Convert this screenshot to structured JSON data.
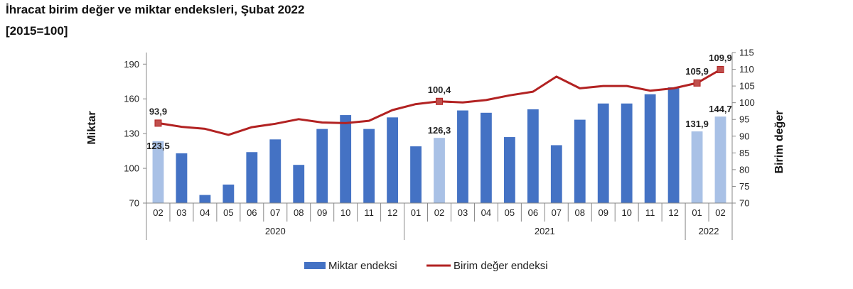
{
  "header": {
    "title": "İhracat birim değer ve miktar endeksleri, Şubat 2022",
    "subtitle": "[2015=100]"
  },
  "chart_data": {
    "type": "bar",
    "categories": [
      "02",
      "03",
      "04",
      "05",
      "06",
      "07",
      "08",
      "09",
      "10",
      "11",
      "12",
      "01",
      "02",
      "03",
      "04",
      "05",
      "06",
      "07",
      "08",
      "09",
      "10",
      "11",
      "12",
      "01",
      "02"
    ],
    "year_groups": [
      {
        "label": "2020",
        "start": 0,
        "end": 10
      },
      {
        "label": "2021",
        "start": 11,
        "end": 22
      },
      {
        "label": "2022",
        "start": 23,
        "end": 24
      }
    ],
    "ylabel_left": "Miktar",
    "ylabel_right": "Birim değer",
    "ylim_left": [
      70,
      200
    ],
    "yticks_left": [
      70,
      100,
      130,
      160,
      190
    ],
    "ylim_right": [
      70,
      115
    ],
    "yticks_right": [
      70,
      75,
      80,
      85,
      90,
      95,
      100,
      105,
      110,
      115
    ],
    "series": [
      {
        "name": "Miktar endeksi",
        "type": "bar",
        "axis": "left",
        "color": "#4472c4",
        "highlight_color": "#a9c1e6",
        "highlight_indices": [
          0,
          12,
          23,
          24
        ],
        "values": [
          123.5,
          113,
          77,
          86,
          114,
          125,
          103,
          134,
          146,
          134,
          144,
          119,
          126.3,
          150,
          148,
          127,
          151,
          120,
          142,
          156,
          156,
          164,
          170,
          131.9,
          144.7
        ]
      },
      {
        "name": "Birim değer endeksi",
        "type": "line",
        "axis": "right",
        "color": "#b22222",
        "marker_indices": [
          0,
          12,
          23,
          24
        ],
        "values": [
          93.9,
          92.8,
          92.2,
          90.4,
          92.7,
          93.7,
          95.1,
          94.1,
          93.9,
          94.6,
          97.8,
          99.6,
          100.4,
          100.1,
          100.8,
          102.2,
          103.3,
          107.8,
          104.3,
          105,
          105,
          103.6,
          104.3,
          105.9,
          109.9
        ]
      }
    ],
    "data_labels": [
      {
        "series": "Miktar endeksi",
        "index": 0,
        "text": "123,5"
      },
      {
        "series": "Miktar endeksi",
        "index": 12,
        "text": "126,3"
      },
      {
        "series": "Miktar endeksi",
        "index": 23,
        "text": "131,9"
      },
      {
        "series": "Miktar endeksi",
        "index": 24,
        "text": "144,7"
      },
      {
        "series": "Birim değer endeksi",
        "index": 0,
        "text": "93,9"
      },
      {
        "series": "Birim değer endeksi",
        "index": 12,
        "text": "100,4"
      },
      {
        "series": "Birim değer endeksi",
        "index": 23,
        "text": "105,9"
      },
      {
        "series": "Birim değer endeksi",
        "index": 24,
        "text": "109,9"
      }
    ],
    "legend": {
      "placement": "bottom-center",
      "items": [
        "Miktar endeksi",
        "Birim değer endeksi"
      ]
    },
    "grid": false
  }
}
